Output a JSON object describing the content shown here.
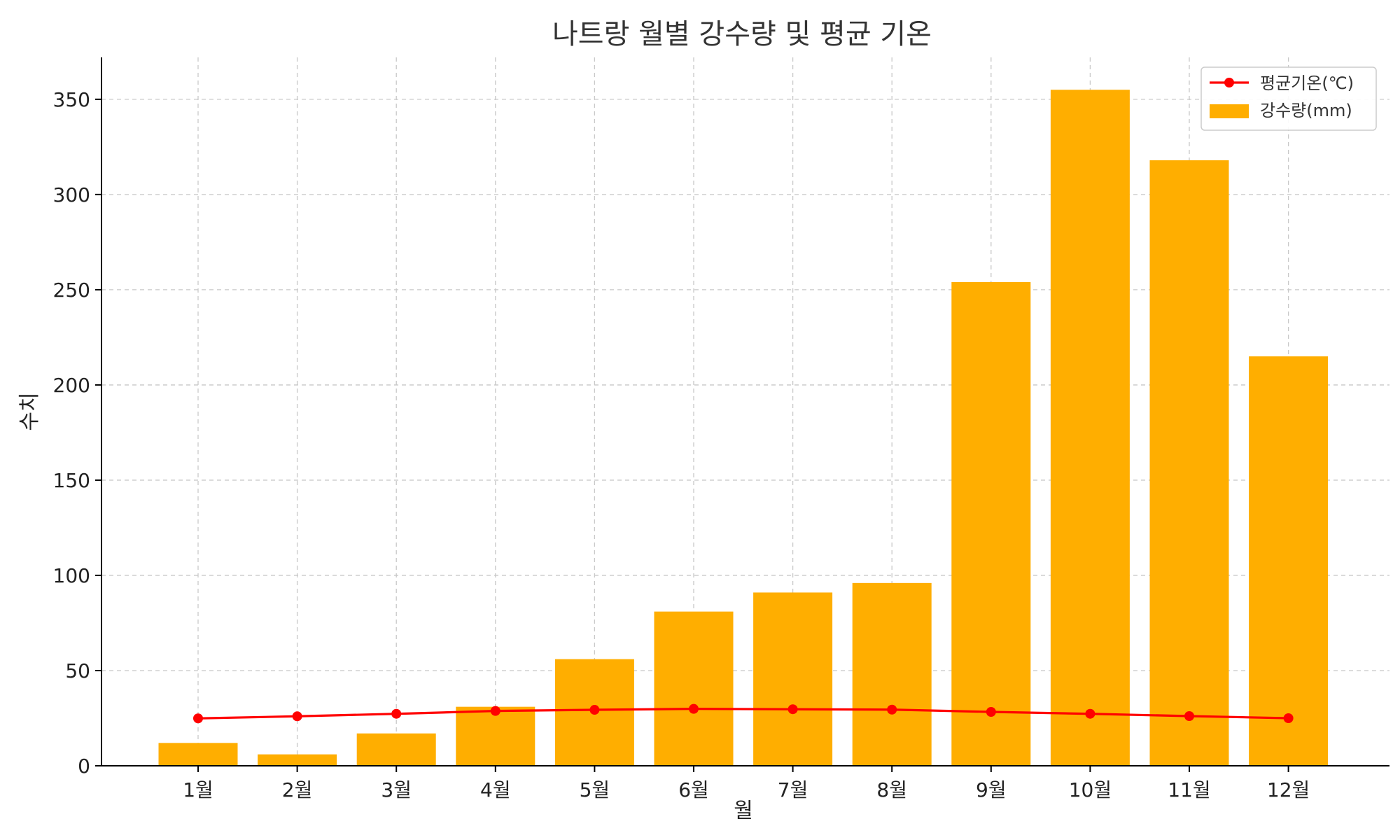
{
  "chart_data": {
    "type": "bar",
    "title": "나트랑 월별 강수량 및 평균 기온",
    "xlabel": "월",
    "ylabel": "수치",
    "categories": [
      "1월",
      "2월",
      "3월",
      "4월",
      "5월",
      "6월",
      "7월",
      "8월",
      "9월",
      "10월",
      "11월",
      "12월"
    ],
    "series": [
      {
        "name": "강수량(mm)",
        "kind": "bar",
        "color": "#ffae00",
        "values": [
          12,
          6,
          17,
          31,
          56,
          81,
          91,
          96,
          254,
          355,
          318,
          215
        ]
      },
      {
        "name": "평균기온(℃)",
        "kind": "line",
        "color": "#ff0000",
        "values": [
          24.9,
          26.0,
          27.3,
          28.8,
          29.4,
          29.9,
          29.7,
          29.5,
          28.3,
          27.3,
          26.1,
          25.0
        ]
      }
    ],
    "ylim": [
      0,
      372
    ],
    "yticks": [
      0,
      50,
      100,
      150,
      200,
      250,
      300,
      350
    ],
    "grid": true,
    "legend_position": "top-right"
  }
}
